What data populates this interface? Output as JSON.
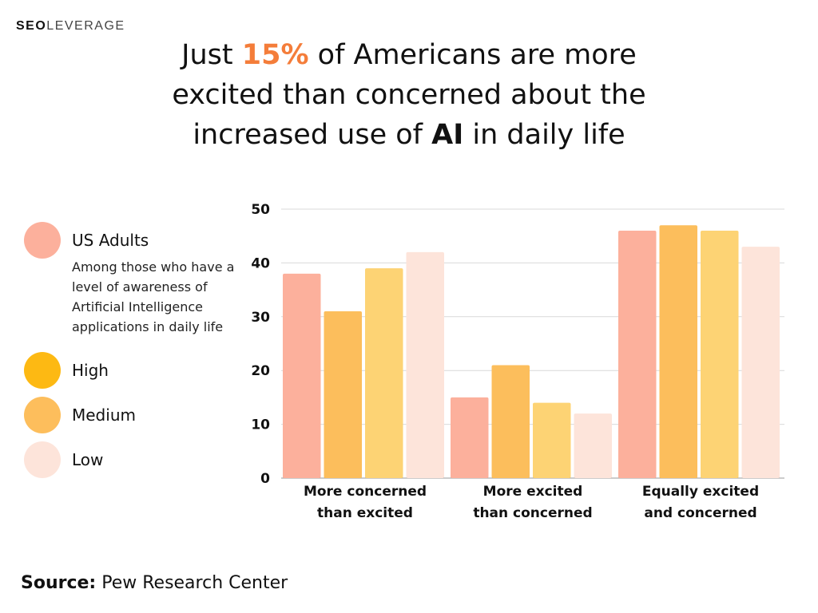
{
  "brand": {
    "bold": "SEO",
    "rest": "LEVERAGE"
  },
  "headline": {
    "line1_pre": "Just ",
    "line1_highlight": "15%",
    "line1_post": " of Americans are more",
    "line2": "excited than concerned about the",
    "line3_pre": "increased use of ",
    "line3_bold": "AI",
    "line3_post": " in daily life"
  },
  "legend": {
    "items": [
      {
        "label": "US Adults",
        "color": "#fcb09c"
      },
      {
        "label": "High",
        "color": "#fdb913"
      },
      {
        "label": "Medium",
        "color": "#fdbe5c"
      },
      {
        "label": "Low",
        "color": "#fde4da"
      }
    ],
    "note": "Among those who have a level of  awareness of Artificial Intelligence applications in daily life"
  },
  "source": {
    "label": "Source:",
    "text": " Pew Research Center"
  },
  "chart_data": {
    "type": "bar",
    "categories": [
      [
        "More concerned",
        "than excited"
      ],
      [
        "More excited",
        "than concerned"
      ],
      [
        "Equally excited",
        "and concerned"
      ]
    ],
    "series": [
      {
        "name": "US Adults",
        "values": [
          38,
          15,
          46
        ],
        "color": "#fcb09c"
      },
      {
        "name": "High",
        "values": [
          31,
          21,
          47
        ],
        "color": "#fcbe5c"
      },
      {
        "name": "Medium",
        "values": [
          39,
          14,
          46
        ],
        "color": "#fdd374"
      },
      {
        "name": "Low",
        "values": [
          42,
          12,
          43
        ],
        "color": "#fde4da"
      }
    ],
    "yticks": [
      0,
      10,
      20,
      30,
      40,
      50
    ],
    "ylim": [
      0,
      50
    ],
    "grid": true,
    "legend_position": "left"
  }
}
